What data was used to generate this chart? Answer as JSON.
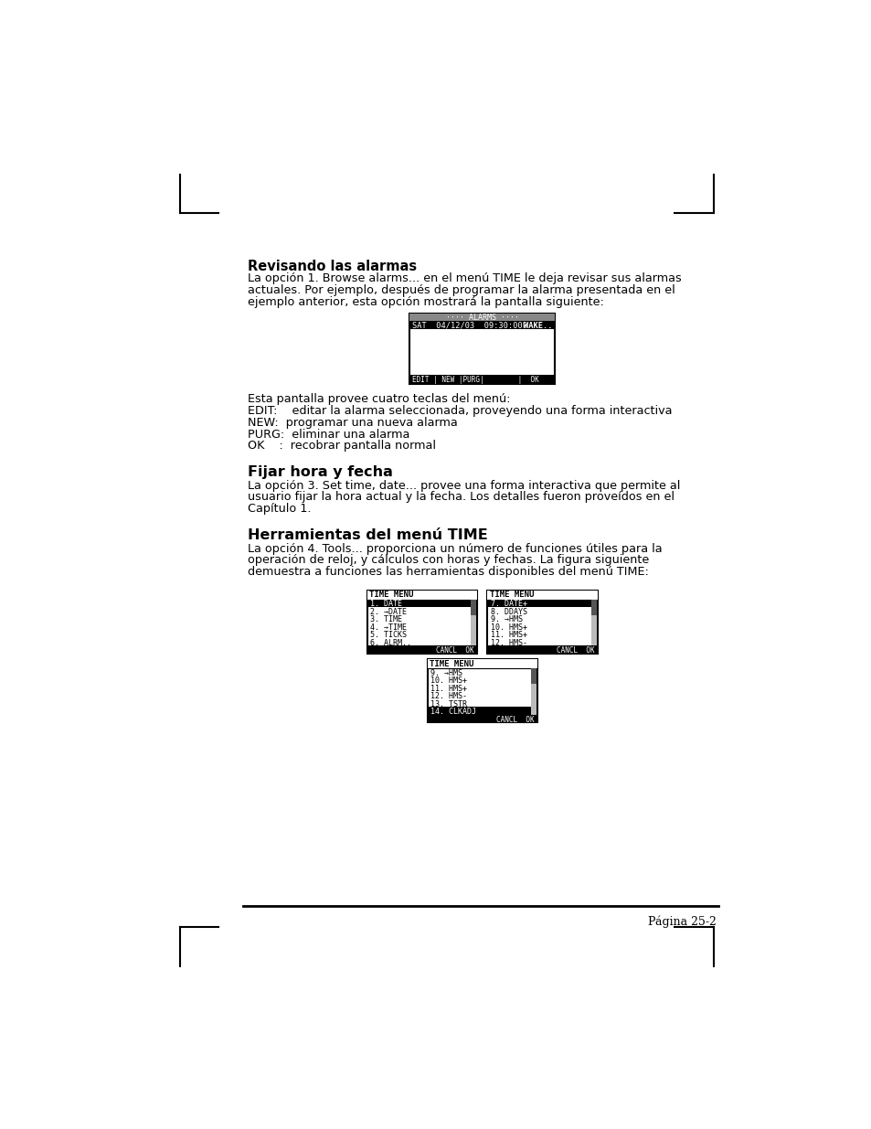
{
  "page_bg": "#ffffff",
  "text_color": "#000000",
  "title1": "Revisando las alarmas",
  "para1_line1": "La opción 1. Browse alarms... en el menú TIME le deja revisar sus alarmas",
  "para1_line2": "actuales. Por ejemplo, después de programar la alarma presentada en el",
  "para1_line3": "ejemplo anterior, esta opción mostrará la pantalla siguiente:",
  "list_line0": "Esta pantalla provee cuatro teclas del menú:",
  "list_line1": "EDIT:    editar la alarma seleccionada, proveyendo una forma interactiva",
  "list_line2": "NEW:  programar una nueva alarma",
  "list_line3": "PURG:  eliminar una alarma",
  "list_line4": "OK    :  recobrar pantalla normal",
  "title2": "Fijar hora y fecha",
  "para2_line1": "La opción 3. Set time, date... provee una forma interactiva que permite al",
  "para2_line2": "usuario fijar la hora actual y la fecha. Los detalles fueron proveídos en el",
  "para2_line3": "Capítulo 1.",
  "title3": "Herramientas del menú TIME",
  "para3_line1": "La opción 4. Tools... proporciona un número de funciones útiles para la",
  "para3_line2": "operación de reloj, y cálculos con horas y fechas. La figura siguiente",
  "para3_line3": "demuestra a funciones las herramientas disponibles del menú TIME:",
  "footer_text": "Página 25-2",
  "menu1_title": "TIME MENU",
  "menu1_items": [
    "1. DATE",
    "2. →DATE",
    "3. TIME",
    "4. →TIME",
    "5. TICKS",
    "6. ALRM.."
  ],
  "menu1_selected": 0,
  "menu2_title": "TIME MENU",
  "menu2_items": [
    "7. DATE+",
    "8. DDAYS",
    "9. →HMS",
    "10. HMS+",
    "11. HMS+",
    "12. HMS-"
  ],
  "menu2_selected": 0,
  "menu3_title": "TIME MENU",
  "menu3_items": [
    "9. →HMS",
    "10. HMS+",
    "11. HMS+",
    "12. HMS-",
    "13. TSTR",
    "14. CLKADJ"
  ],
  "menu3_selected": 5
}
